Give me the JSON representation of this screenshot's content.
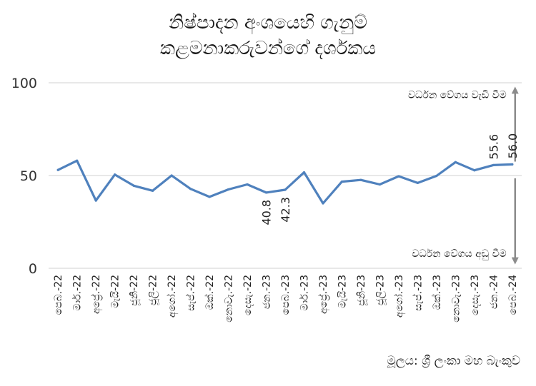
{
  "title_line1": "නිෂ්පාදන අංශයෙහි ගැනුම්",
  "title_line2": "කළමනාකරුවන්ගේ දර්ශකය",
  "source": "මූලය: ශ්‍රී ලංකා මහ බැංකුව",
  "colors": {
    "line": "#4f81bd",
    "grid": "#d9d9d9",
    "arrow": "#8c8c8c"
  },
  "chart_data": {
    "type": "line",
    "categories": [
      "පෙබ.-22",
      "මාර්.-22",
      "අප්‍රේ.-22",
      "මැයි-22",
      "ජූනි-22",
      "ජූලි-22",
      "අගෝ.-22",
      "සැප්.-22",
      "ඔක්.-22",
      "නොවැ.-22",
      "දෙසැ.-22",
      "ජන.-23",
      "පෙබ.-23",
      "මාර්.-23",
      "අප්‍රේ.-23",
      "මැයි-23",
      "ජූනි-23",
      "ජූලි-23",
      "අගෝ.-23",
      "සැප්.-23",
      "ඔක්.-23",
      "නොවැ.-23",
      "දෙසැ.-23",
      "ජන.-24",
      "පෙබ.-24"
    ],
    "series": [
      {
        "values": [
          53.0,
          58.0,
          36.5,
          50.5,
          44.5,
          41.8,
          50.0,
          42.8,
          38.5,
          42.5,
          45.2,
          40.8,
          42.3,
          51.7,
          35.0,
          46.7,
          47.6,
          45.2,
          49.6,
          46.0,
          49.8,
          57.2,
          52.8,
          55.6,
          56.0
        ]
      }
    ],
    "ylim": [
      0,
      100
    ],
    "yticks": [
      0,
      50,
      100
    ],
    "data_labels": [
      {
        "index": 11,
        "text": "40.8"
      },
      {
        "index": 12,
        "text": "42.3"
      },
      {
        "index": 23,
        "text": "55.6"
      },
      {
        "index": 24,
        "text": "56.0"
      }
    ],
    "annotations": {
      "up": "වර්ධන වේගය වැඩි වීම",
      "down": "වර්ධන වේගය අඩු වීම"
    },
    "grid": true
  }
}
